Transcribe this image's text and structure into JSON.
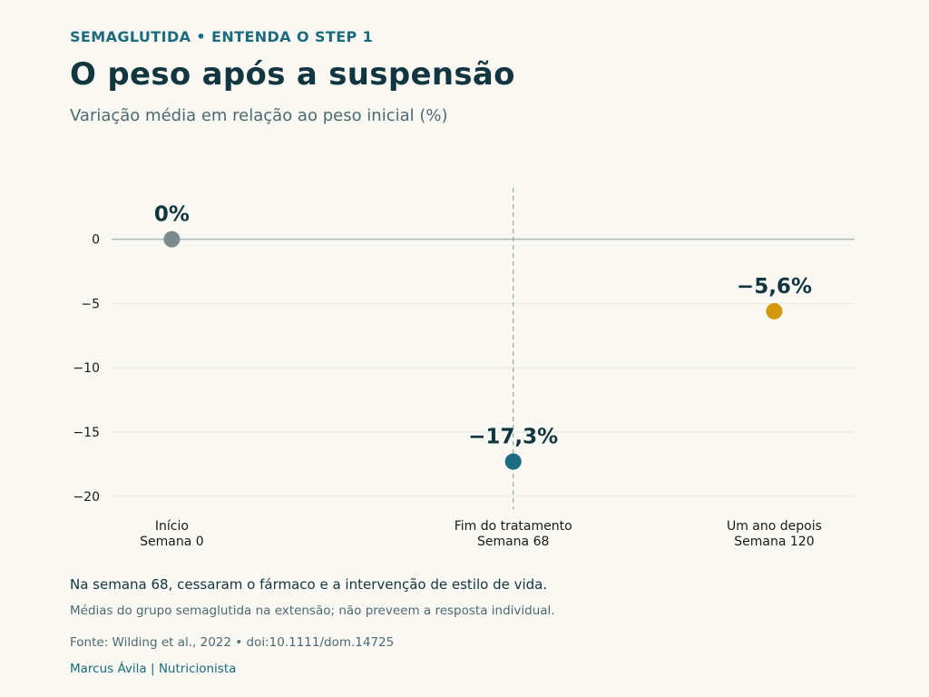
{
  "header": {
    "kicker": "SEMAGLUTIDA • ENTENDA O STEP 1",
    "title": "O peso após a suspensão",
    "subtitle": "Variação média em relação ao peso inicial (%)"
  },
  "footer": {
    "note": "Na semana 68, cessaram o fármaco e a intervenção de estilo de vida.",
    "caption": "Médias do grupo semaglutida na extensão; não preveem a resposta individual.",
    "source": "Fonte: Wilding et al., 2022 • doi:10.1111/dom.14725",
    "author": "Marcus Ávila | Nutricionista"
  },
  "chart_data": {
    "type": "scatter",
    "title": "",
    "xlabel": "",
    "ylabel": "",
    "ylim": [
      -21,
      4
    ],
    "yticks": [
      0,
      -5,
      -10,
      -15,
      -20
    ],
    "ytick_labels": [
      "0",
      "−5",
      "−10",
      "−15",
      "−20"
    ],
    "x": [
      0,
      68,
      120
    ],
    "xlim": [
      -12,
      136
    ],
    "x_tick_labels": [
      [
        "Início",
        "Semana 0"
      ],
      [
        "Fim do tratamento",
        "Semana 68"
      ],
      [
        "Um ano depois",
        "Semana 120"
      ]
    ],
    "values": [
      0,
      -17.3,
      -5.6
    ],
    "data_labels": [
      "0%",
      "−17,3%",
      "−5,6%"
    ],
    "point_colors": [
      "#7b8a8c",
      "#1c6b7e",
      "#d4980e"
    ],
    "reference_line_x": 68,
    "grid": "horizontal",
    "colors": {
      "text": "#12363f",
      "tick": "#1a1a1a",
      "grid": "#e8e8e0",
      "zero_line": "#aeb9b6",
      "ref_line": "#8fb3b5"
    }
  }
}
